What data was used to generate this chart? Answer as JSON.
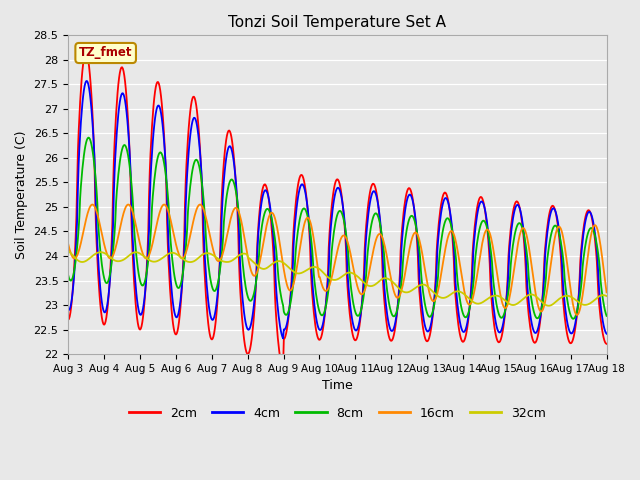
{
  "title": "Tonzi Soil Temperature Set A",
  "xlabel": "Time",
  "ylabel": "Soil Temperature (C)",
  "ylim": [
    22.0,
    28.5
  ],
  "yticks": [
    22.0,
    22.5,
    23.0,
    23.5,
    24.0,
    24.5,
    25.0,
    25.5,
    26.0,
    26.5,
    27.0,
    27.5,
    28.0,
    28.5
  ],
  "xtick_labels": [
    "Aug 3",
    "Aug 4",
    "Aug 5",
    "Aug 6",
    "Aug 7",
    "Aug 8",
    "Aug 9",
    "Aug 10",
    "Aug 11",
    "Aug 12",
    "Aug 13",
    "Aug 14",
    "Aug 15",
    "Aug 16",
    "Aug 17",
    "Aug 18"
  ],
  "series_colors": [
    "#ff0000",
    "#0000ff",
    "#00bb00",
    "#ff8800",
    "#cccc00"
  ],
  "series_labels": [
    "2cm",
    "4cm",
    "8cm",
    "16cm",
    "32cm"
  ],
  "annotation_text": "TZ_fmet",
  "fig_facecolor": "#e8e8e8",
  "ax_facecolor": "#e8e8e8",
  "grid_color": "#ffffff",
  "line_width": 1.3,
  "n_points": 720,
  "time_days": 15
}
